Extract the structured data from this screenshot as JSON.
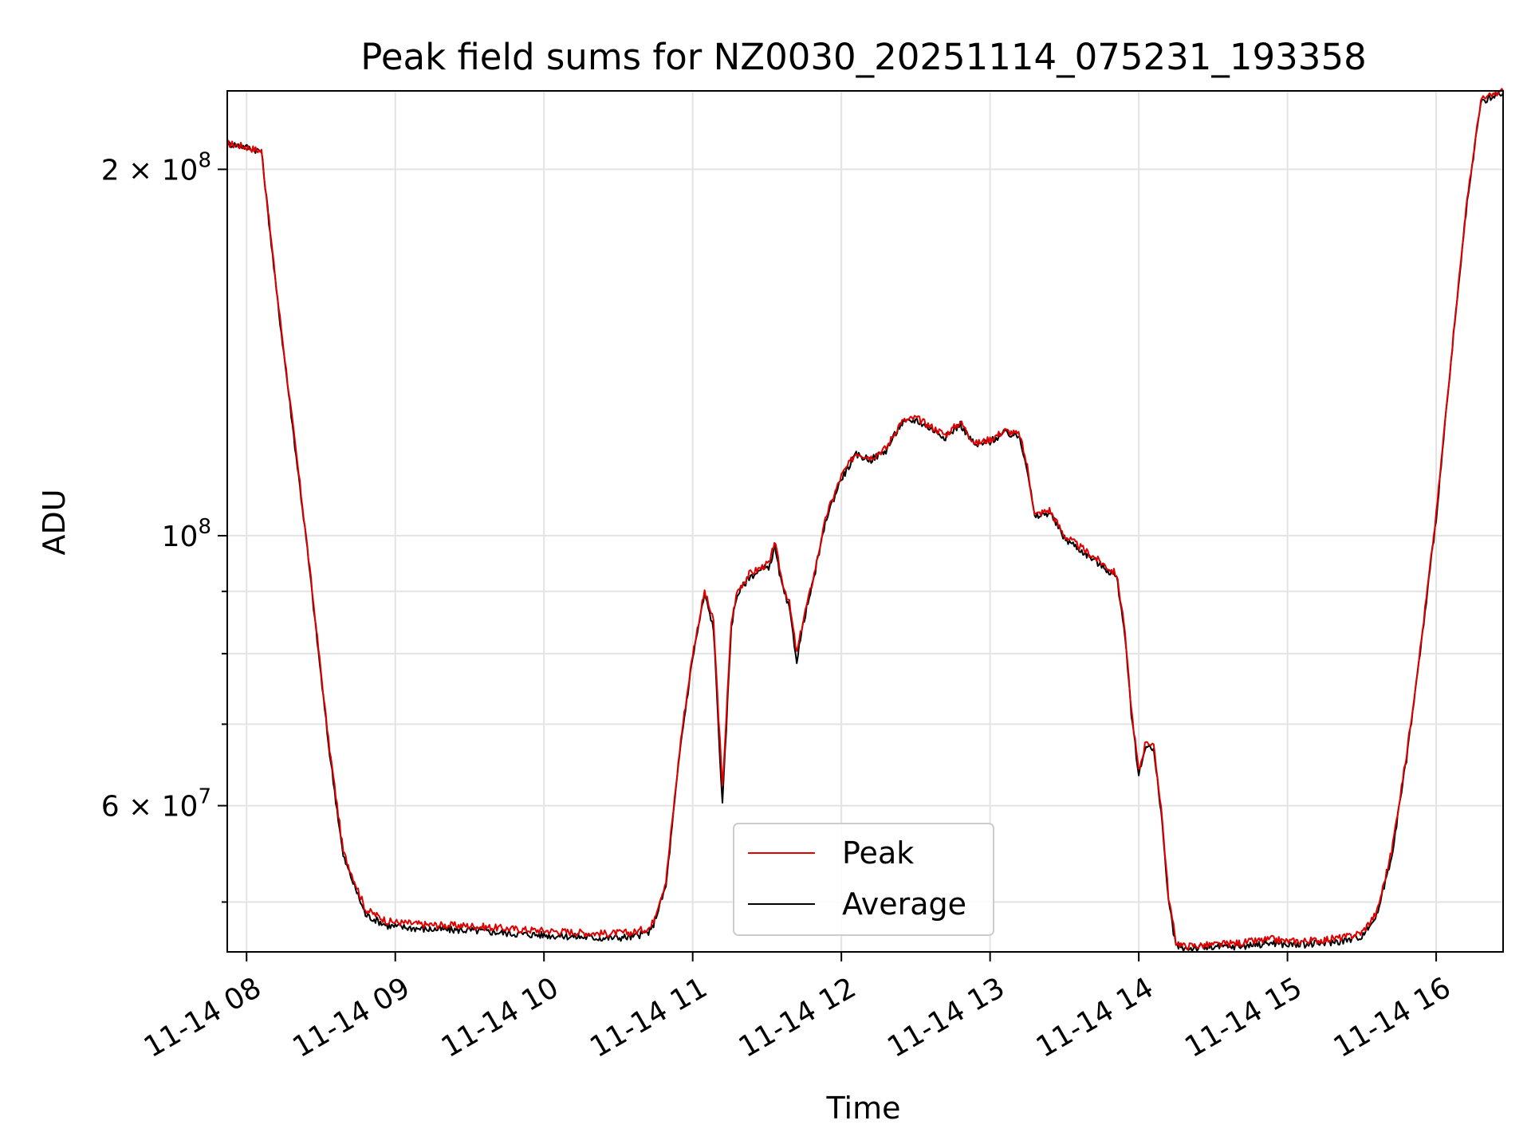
{
  "chart_data": {
    "type": "line",
    "title": "Peak field sums for NZ0030_20251114_075231_193358",
    "xlabel": "Time",
    "ylabel": "ADU",
    "yscale": "log",
    "ylim": [
      45500000,
      232000000
    ],
    "xlim": [
      7.87,
      16.45
    ],
    "x_unit": "hours on 2025-11-14",
    "grid": true,
    "legend_position": "lower-center",
    "x_ticks": [
      {
        "value": 8,
        "label": "11-14 08"
      },
      {
        "value": 9,
        "label": "11-14 09"
      },
      {
        "value": 10,
        "label": "11-14 10"
      },
      {
        "value": 11,
        "label": "11-14 11"
      },
      {
        "value": 12,
        "label": "11-14 12"
      },
      {
        "value": 13,
        "label": "11-14 13"
      },
      {
        "value": 14,
        "label": "11-14 14"
      },
      {
        "value": 15,
        "label": "11-14 15"
      },
      {
        "value": 16,
        "label": "11-14 16"
      }
    ],
    "y_ticks": [
      {
        "value": 200000000,
        "mantissa": "2",
        "exponent": "8",
        "label": "2 × 10^8"
      },
      {
        "value": 100000000,
        "mantissa": "",
        "exponent": "8",
        "label": "10^8"
      },
      {
        "value": 60000000,
        "mantissa": "6",
        "exponent": "7",
        "label": "6 × 10^7"
      }
    ],
    "y_minor_ticks": [
      50000000,
      70000000,
      80000000,
      90000000
    ],
    "x": [
      7.87,
      7.97,
      8.1,
      8.2,
      8.4,
      8.55,
      8.65,
      8.8,
      8.95,
      9.2,
      9.5,
      9.8,
      10.1,
      10.4,
      10.6,
      10.72,
      10.82,
      10.92,
      11.0,
      11.08,
      11.14,
      11.2,
      11.26,
      11.3,
      11.38,
      11.45,
      11.52,
      11.55,
      11.6,
      11.65,
      11.7,
      11.75,
      11.8,
      11.9,
      12.0,
      12.1,
      12.2,
      12.3,
      12.4,
      12.5,
      12.6,
      12.7,
      12.8,
      12.9,
      13.0,
      13.1,
      13.2,
      13.25,
      13.3,
      13.4,
      13.5,
      13.6,
      13.7,
      13.8,
      13.85,
      13.9,
      13.95,
      14.0,
      14.05,
      14.1,
      14.15,
      14.2,
      14.25,
      14.3,
      14.5,
      14.7,
      14.9,
      15.0,
      15.2,
      15.4,
      15.5,
      15.6,
      15.7,
      15.8,
      15.9,
      16.0,
      16.1,
      16.2,
      16.3,
      16.45
    ],
    "series": [
      {
        "name": "Peak",
        "color": "#e00000",
        "values": [
          210000000,
          209000000,
          207000000,
          160000000,
          100000000,
          68000000,
          55000000,
          49300000,
          48200000,
          47900000,
          47800000,
          47500000,
          47300000,
          47100000,
          47200000,
          47700000,
          52000000,
          68000000,
          80000000,
          90000000,
          85000000,
          62000000,
          85000000,
          90000000,
          93000000,
          94000000,
          95000000,
          99000000,
          92000000,
          88000000,
          80000000,
          86000000,
          91000000,
          104000000,
          112000000,
          117000000,
          116000000,
          118000000,
          124000000,
          125000000,
          123000000,
          121000000,
          124000000,
          119000000,
          120000000,
          122000000,
          121000000,
          114000000,
          104000000,
          105000000,
          100000000,
          98000000,
          96000000,
          94000000,
          93000000,
          85000000,
          72000000,
          64000000,
          68000000,
          67000000,
          60000000,
          50500000,
          46400000,
          46000000,
          46100000,
          46300000,
          46600000,
          46400000,
          46500000,
          46800000,
          47200000,
          49000000,
          55000000,
          66000000,
          82000000,
          104000000,
          140000000,
          185000000,
          228000000,
          232000000
        ]
      },
      {
        "name": "Average",
        "color": "#000000",
        "values": [
          210000000,
          209000000,
          207000000,
          159000000,
          99500000,
          67500000,
          54500000,
          48800000,
          47800000,
          47500000,
          47400000,
          47100000,
          46900000,
          46700000,
          46800000,
          47300000,
          51500000,
          67500000,
          79500000,
          89500000,
          84000000,
          60000000,
          84500000,
          89500000,
          92500000,
          93500000,
          94500000,
          98000000,
          91000000,
          87000000,
          79000000,
          85500000,
          90500000,
          103500000,
          111500000,
          116500000,
          115500000,
          117500000,
          123500000,
          124500000,
          122500000,
          120500000,
          123500000,
          118500000,
          119500000,
          121500000,
          120500000,
          113500000,
          103500000,
          104500000,
          99500000,
          97500000,
          95500000,
          93500000,
          92500000,
          84500000,
          71500000,
          63500000,
          67500000,
          66500000,
          59500000,
          50000000,
          46000000,
          45800000,
          45900000,
          46000000,
          46300000,
          46100000,
          46200000,
          46500000,
          46900000,
          48700000,
          54500000,
          65500000,
          81500000,
          103500000,
          139000000,
          184000000,
          227000000,
          231000000
        ]
      }
    ]
  }
}
